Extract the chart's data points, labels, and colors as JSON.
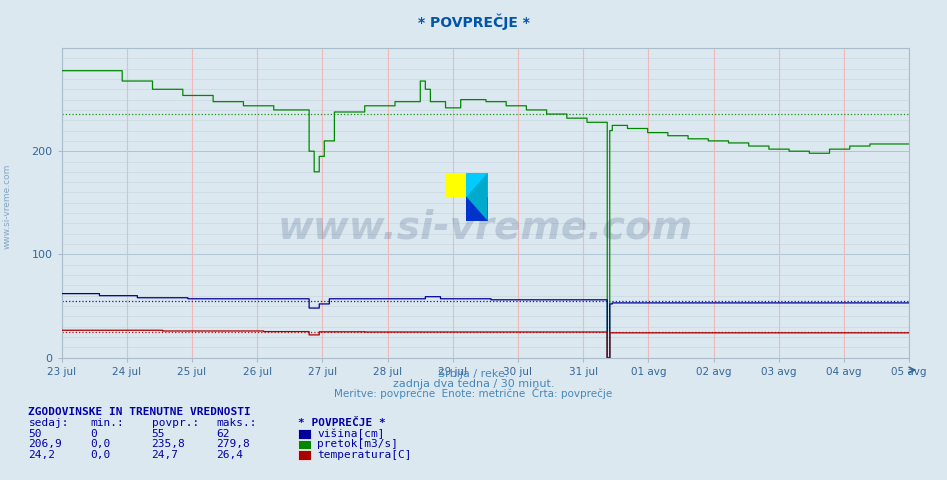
{
  "title": "* POVPREČJE *",
  "title_color": "#0055aa",
  "bg_color": "#dce8f0",
  "plot_bg_color": "#dce8f0",
  "xlabel1": "Srbija / reke.",
  "xlabel2": "zadnja dva tedna / 30 minut.",
  "xlabel3": "Meritve: povprečne  Enote: metrične  Črta: povprečje",
  "xlabel_color": "#4488bb",
  "ylim": [
    0,
    300
  ],
  "yticks": [
    0,
    100,
    200
  ],
  "x_labels": [
    "23 jul",
    "24 jul",
    "25 jul",
    "26 jul",
    "27 jul",
    "28 jul",
    "29 jul",
    "30 jul",
    "31 jul",
    "01 avg",
    "02 avg",
    "03 avg",
    "04 avg",
    "05 avg"
  ],
  "green_avg": 235.8,
  "blue_avg": 55,
  "red_avg": 24.7,
  "green_color": "#008800",
  "blue_color": "#000099",
  "red_color": "#aa0000",
  "legend_title": "* POVPREČJE *",
  "legend_title_color": "#0000aa",
  "legend_items": [
    {
      "label": "višina[cm]",
      "color": "#000099"
    },
    {
      "label": "pretok[m3/s]",
      "color": "#008800"
    },
    {
      "label": "temperatura[C]",
      "color": "#aa0000"
    }
  ],
  "table_title": "ZGODOVINSKE IN TRENUTNE VREDNOSTI",
  "table_headers": [
    "sedaj:",
    "min.:",
    "povpr.:",
    "maks.:"
  ],
  "table_rows": [
    [
      "50",
      "0",
      "55",
      "62"
    ],
    [
      "206,9",
      "0,0",
      "235,8",
      "279,8"
    ],
    [
      "24,2",
      "0,0",
      "24,7",
      "26,4"
    ]
  ],
  "table_color": "#0000aa",
  "watermark_text": "www.si-vreme.com",
  "watermark_color": "#1a3a6a",
  "watermark_alpha": 0.18,
  "sidebar_text": "www.si-vreme.com",
  "sidebar_color": "#7799bb"
}
